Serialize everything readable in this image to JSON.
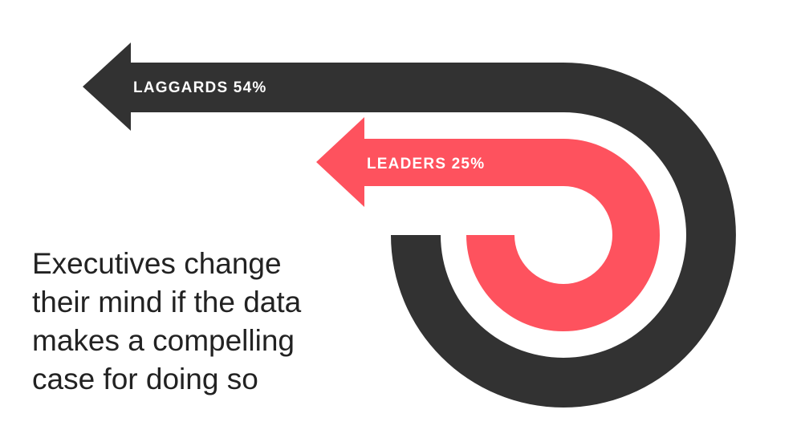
{
  "arrows": [
    {
      "label": "LAGGARDS 54%",
      "color": "#323232",
      "percent": 54
    },
    {
      "label": "LEADERS 25%",
      "color": "#fe525e",
      "percent": 25
    }
  ],
  "caption": {
    "lines": [
      "Executives change",
      "their mind if the data",
      "makes a compelling",
      "case for doing so"
    ]
  }
}
